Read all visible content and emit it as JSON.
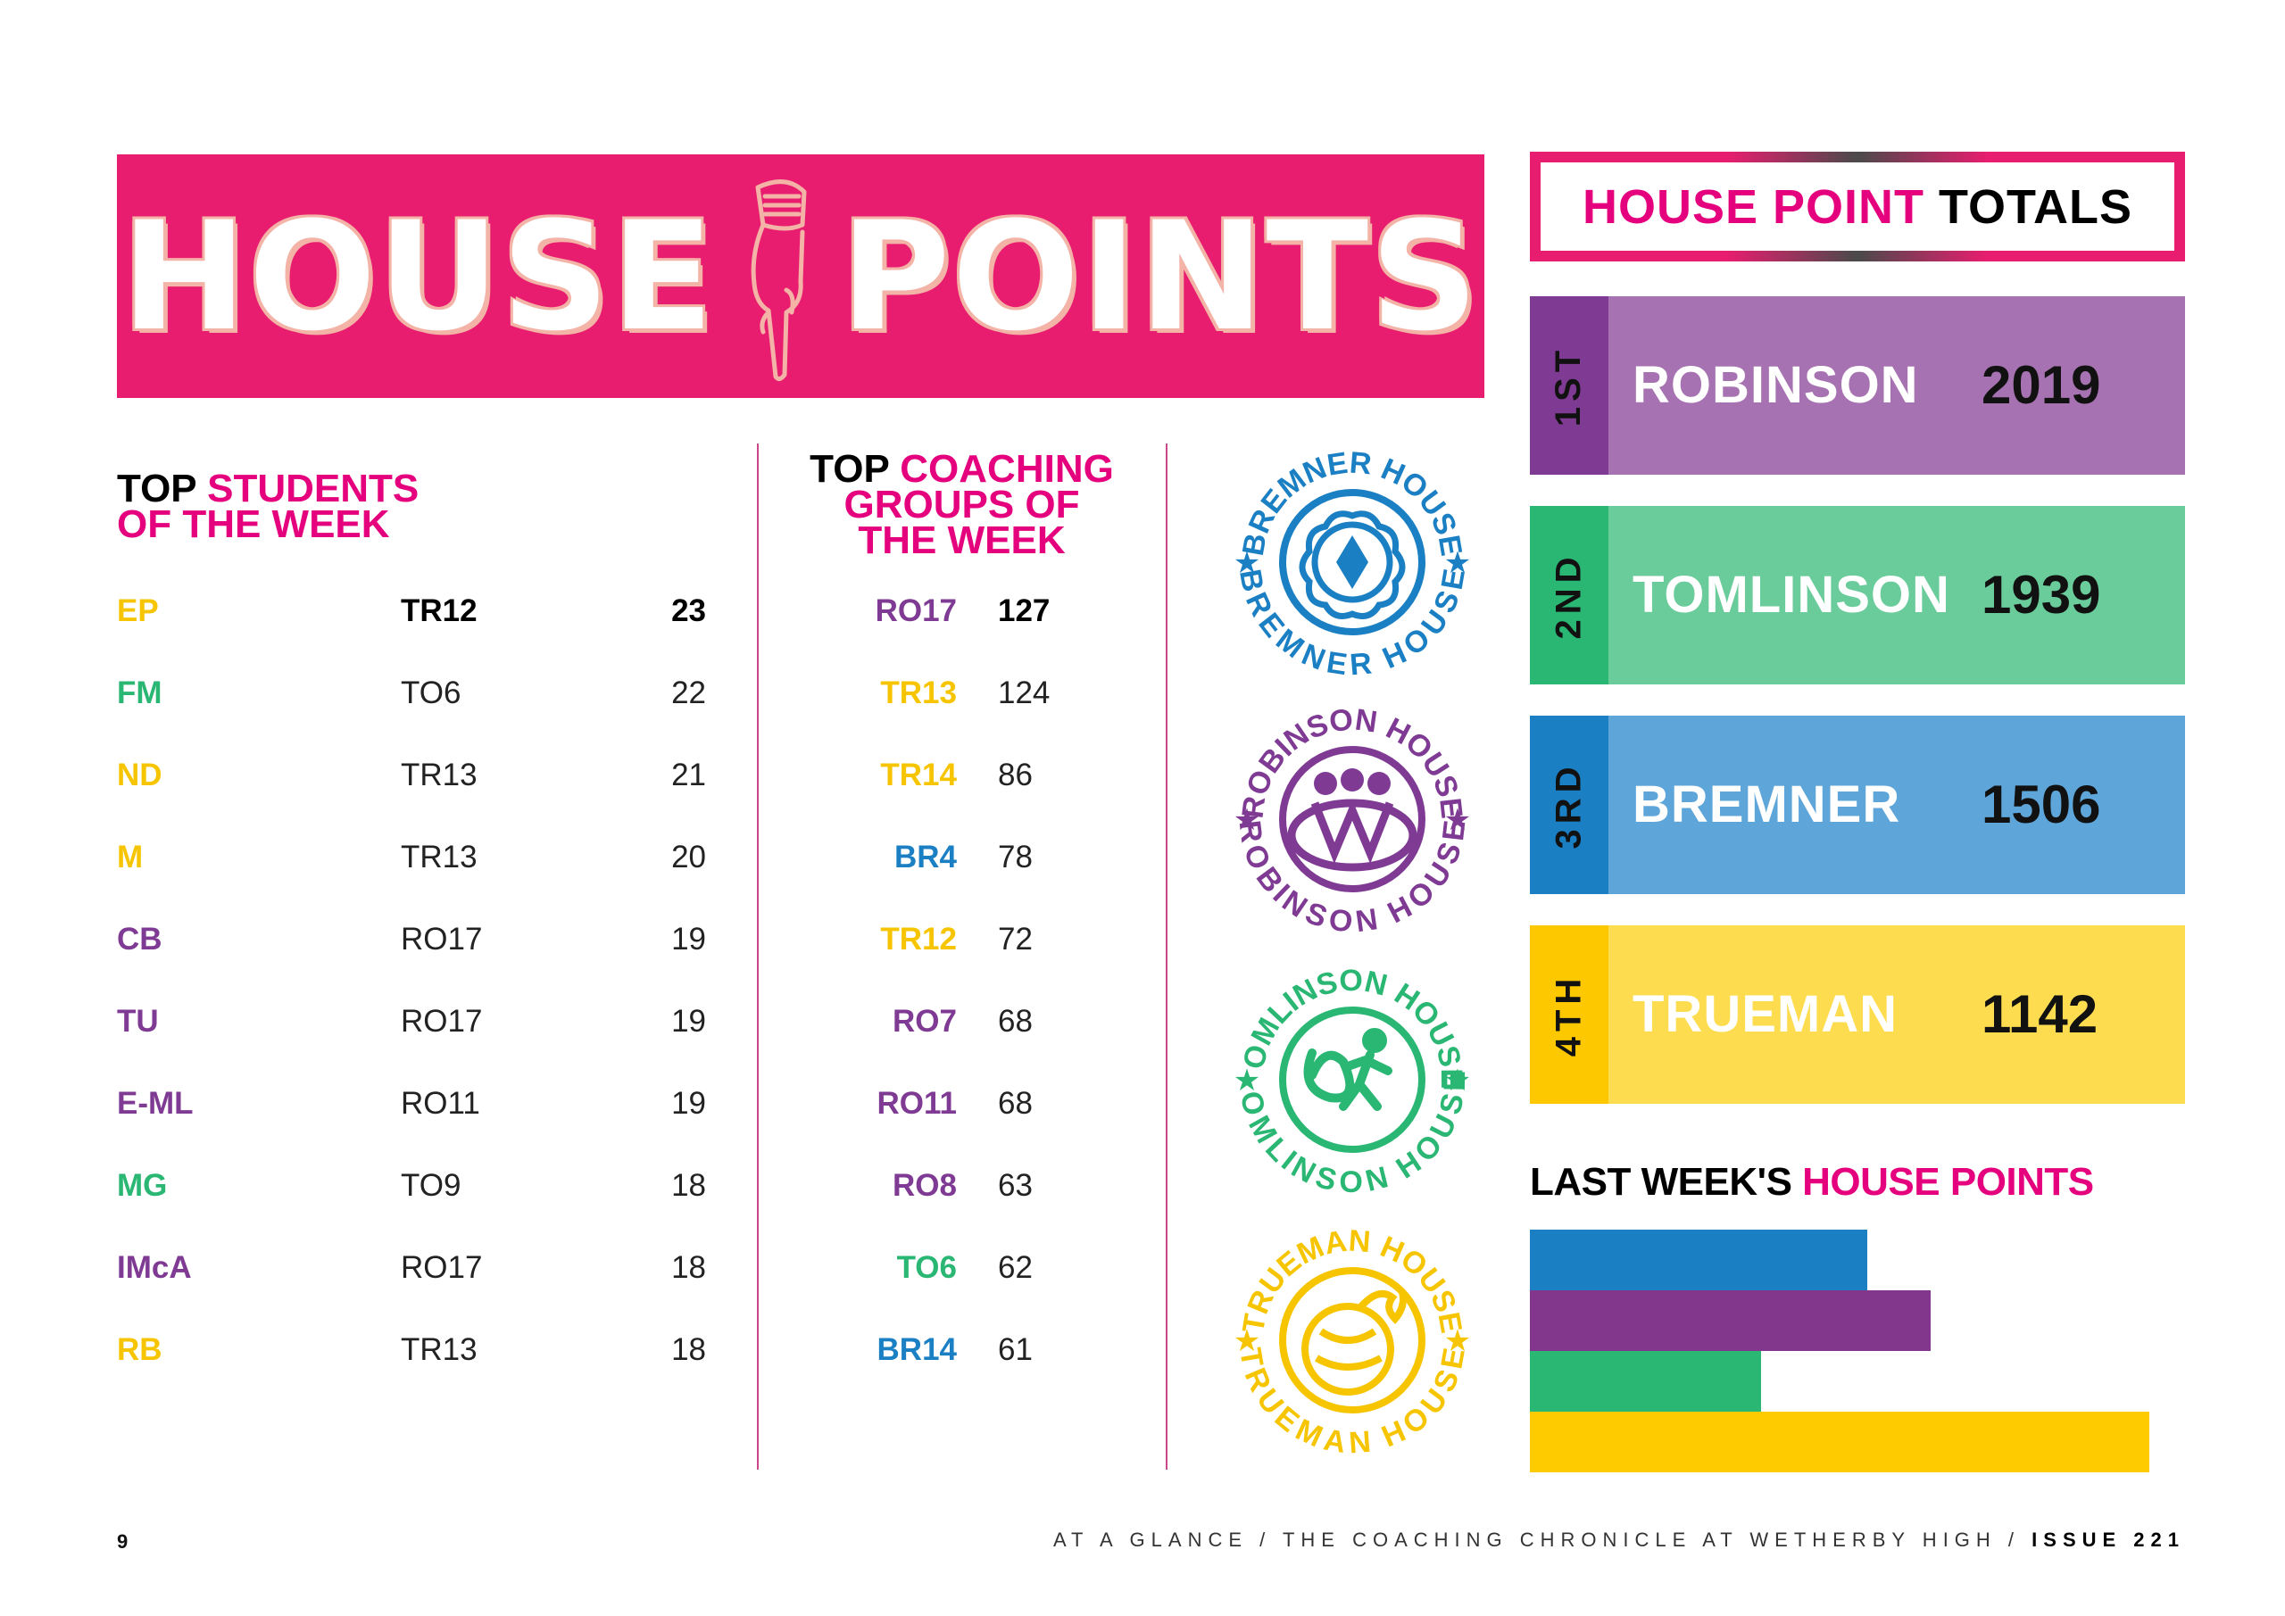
{
  "banner": {
    "word1": "HOUSE",
    "word2": "POINTS",
    "hand_icon": "pointing-hand-icon"
  },
  "students": {
    "heading_black": "TOP",
    "heading_pink_1": "STUDENTS",
    "heading_pink_2": "OF THE WEEK",
    "rows": [
      {
        "initials": "EP",
        "group": "TR12",
        "points": "23",
        "color": "#f6c500"
      },
      {
        "initials": "FM",
        "group": "TO6",
        "points": "22",
        "color": "#2ab673"
      },
      {
        "initials": "ND",
        "group": "TR13",
        "points": "21",
        "color": "#f6c500"
      },
      {
        "initials": "M",
        "group": "TR13",
        "points": "20",
        "color": "#f6c500"
      },
      {
        "initials": "CB",
        "group": "RO17",
        "points": "19",
        "color": "#7f3a93"
      },
      {
        "initials": "TU",
        "group": "RO17",
        "points": "19",
        "color": "#7f3a93"
      },
      {
        "initials": "E-ML",
        "group": "RO11",
        "points": "19",
        "color": "#7f3a93"
      },
      {
        "initials": "MG",
        "group": "TO9",
        "points": "18",
        "color": "#2ab673"
      },
      {
        "initials": "IMcA",
        "group": "RO17",
        "points": "18",
        "color": "#7f3a93"
      },
      {
        "initials": "RB",
        "group": "TR13",
        "points": "18",
        "color": "#f6c500"
      }
    ]
  },
  "groups": {
    "heading_black": "TOP",
    "heading_pink_1": "COACHING",
    "heading_pink_2": "GROUPS OF",
    "heading_pink_3": "THE WEEK",
    "rows": [
      {
        "code": "RO17",
        "points": "127",
        "color": "#7f3a93"
      },
      {
        "code": "TR13",
        "points": "124",
        "color": "#f6c500"
      },
      {
        "code": "TR14",
        "points": "86",
        "color": "#f6c500"
      },
      {
        "code": "BR4",
        "points": "78",
        "color": "#1b7fc4"
      },
      {
        "code": "TR12",
        "points": "72",
        "color": "#f6c500"
      },
      {
        "code": "RO7",
        "points": "68",
        "color": "#7f3a93"
      },
      {
        "code": "RO11",
        "points": "68",
        "color": "#7f3a93"
      },
      {
        "code": "RO8",
        "points": "63",
        "color": "#7f3a93"
      },
      {
        "code": "TO6",
        "points": "62",
        "color": "#2ab673"
      },
      {
        "code": "BR14",
        "points": "61",
        "color": "#1b7fc4"
      }
    ]
  },
  "badges": [
    {
      "name": "BREMNER HOUSE",
      "color": "#1b7fc4",
      "icon": "tudor-rose-icon"
    },
    {
      "name": "ROBINSON HOUSE",
      "color": "#7f3a93",
      "icon": "people-group-icon"
    },
    {
      "name": "TOMLINSON HOUSE",
      "color": "#2ab673",
      "icon": "runner-icon"
    },
    {
      "name": "TRUEMAN HOUSE",
      "color": "#f6c500",
      "icon": "flaming-ball-icon"
    }
  ],
  "totals": {
    "title_pink": "HOUSE POINT",
    "title_black": "TOTALS",
    "ranks": [
      {
        "place": "1ST",
        "house": "ROBINSON",
        "score": "2019",
        "tab_color": "#7f3a93",
        "color": "#a772b1"
      },
      {
        "place": "2ND",
        "house": "TOMLINSON",
        "score": "1939",
        "tab_color": "#2ab673",
        "color": "#6acb9b"
      },
      {
        "place": "3RD",
        "house": "BREMNER",
        "score": "1506",
        "tab_color": "#1b7fc4",
        "color": "#5ea6d9"
      },
      {
        "place": "4TH",
        "house": "TRUEMAN",
        "score": "1142",
        "tab_color": "#fdc800",
        "color": "#fddc4f"
      }
    ]
  },
  "last_week": {
    "title_black": "LAST WEEK'S",
    "title_pink": "HOUSE POINTS",
    "bars": [
      {
        "house": "Bremner",
        "fraction": 0.515,
        "color": "#1b7fc4"
      },
      {
        "house": "Robinson",
        "fraction": 0.612,
        "color": "#82368c"
      },
      {
        "house": "Tomlinson",
        "fraction": 0.353,
        "color": "#2ab673"
      },
      {
        "house": "Trueman",
        "fraction": 0.946,
        "color": "#fdcb00"
      }
    ]
  },
  "footer": {
    "page_number": "9",
    "text": "AT A GLANCE / THE COACHING CHRONICLE AT WETHERBY HIGH /",
    "issue": "ISSUE 221"
  }
}
